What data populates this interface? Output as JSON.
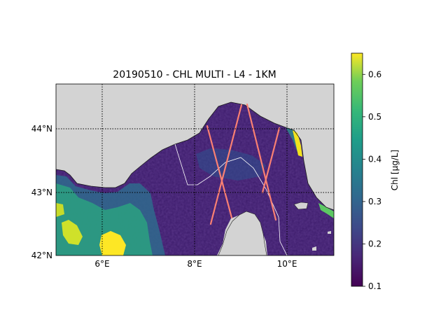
{
  "map": {
    "title": "20190510 - CHL MULTI - L4 - 1KM",
    "lon_ticks": [
      "6°E",
      "8°E",
      "10°E"
    ],
    "lat_ticks": [
      "44°N",
      "43°N",
      "42°N"
    ],
    "extent": {
      "lon": [
        5.0,
        11.0
      ],
      "lat": [
        42.0,
        44.7
      ]
    },
    "gridlines": true,
    "land_color": "#d3d3d3",
    "track_color": "#fa8072"
  },
  "colorbar": {
    "label": "Chl [μg/L]",
    "ticks": [
      "0.1",
      "0.2",
      "0.3",
      "0.4",
      "0.5",
      "0.6"
    ],
    "tick_values": [
      0.1,
      0.2,
      0.3,
      0.4,
      0.5,
      0.6
    ],
    "range": [
      0.1,
      0.65
    ],
    "colormap": "viridis"
  }
}
